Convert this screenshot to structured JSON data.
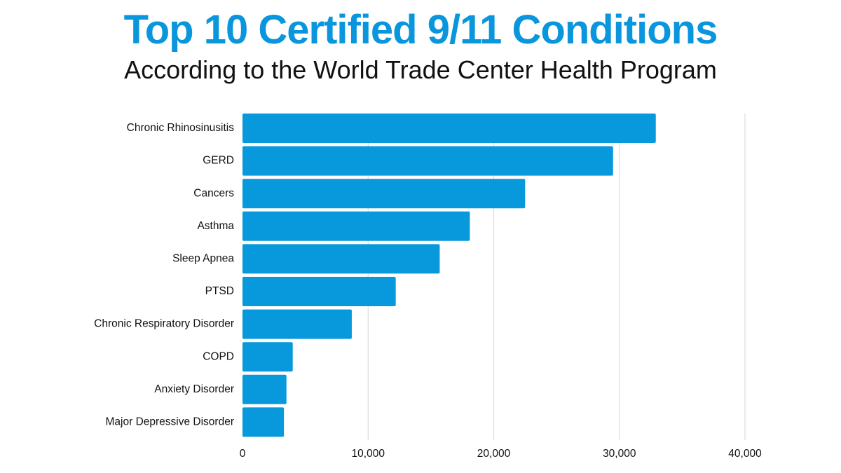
{
  "title": "Top 10 Certified 9/11 Conditions",
  "subtitle": "According to the World Trade Center Health Program",
  "colors": {
    "bar": "#0899dd",
    "grid": "#d6d6d6",
    "title": "#0a96dc"
  },
  "chart_data": {
    "type": "bar",
    "orientation": "horizontal",
    "title": "Top 10 Certified 9/11 Conditions",
    "subtitle": "According to the World Trade Center Health Program",
    "categories": [
      "Chronic Rhinosinusitis",
      "GERD",
      "Cancers",
      "Asthma",
      "Sleep Apnea",
      "PTSD",
      "Chronic Respiratory Disorder",
      "COPD",
      "Anxiety Disorder",
      "Major Depressive Disorder"
    ],
    "values": [
      32900,
      29500,
      22500,
      18100,
      15700,
      12200,
      8700,
      4000,
      3500,
      3300
    ],
    "xlim": [
      0,
      40000
    ],
    "xticks": [
      0,
      10000,
      20000,
      30000,
      40000
    ],
    "xtick_labels": [
      "0",
      "10,000",
      "20,000",
      "30,000",
      "40,000"
    ],
    "xlabel": "",
    "ylabel": "",
    "grid": "vertical"
  }
}
